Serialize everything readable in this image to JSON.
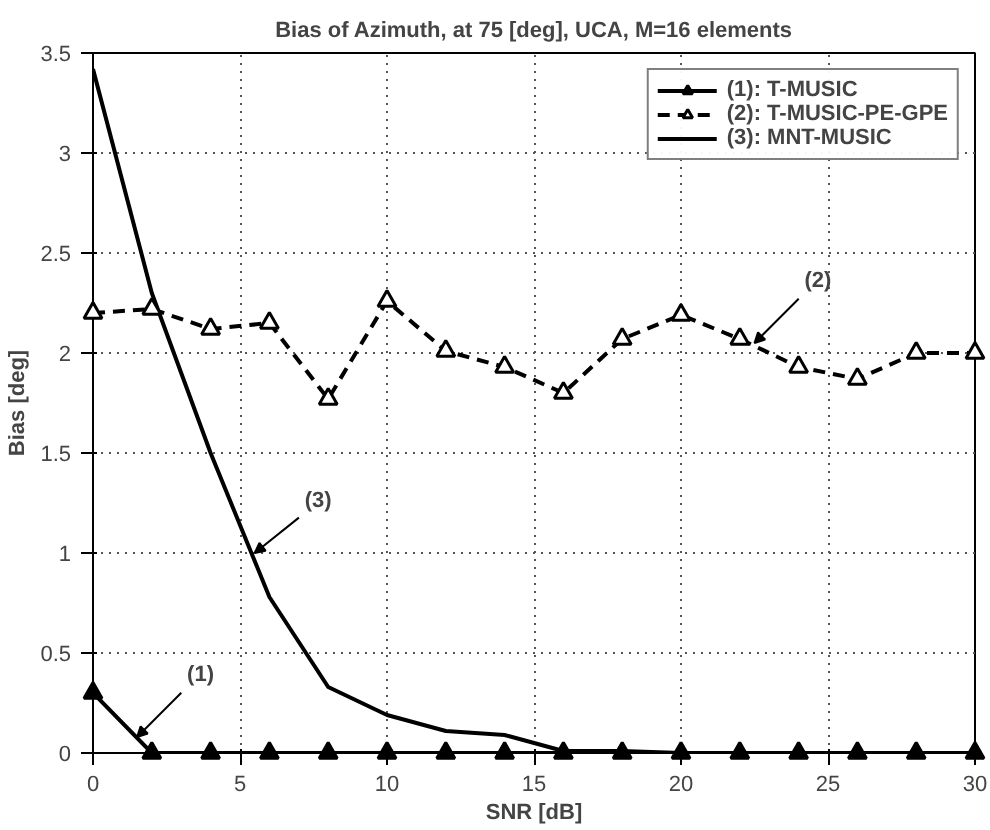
{
  "chart_data": {
    "type": "line",
    "title": "Bias of Azimuth, at 75 [deg], UCA, M=16 elements",
    "xlabel": "SNR [dB]",
    "ylabel": "Bias [deg]",
    "x": [
      0,
      2,
      4,
      6,
      8,
      10,
      12,
      14,
      16,
      18,
      20,
      22,
      24,
      26,
      28,
      30
    ],
    "series": [
      {
        "name": "(1): T-MUSIC",
        "color": "#000000",
        "marker": "triangle",
        "line_style": "solid",
        "values": [
          0.3,
          0,
          0,
          0,
          0,
          0,
          0,
          0,
          0,
          0,
          0,
          0,
          0,
          0,
          0,
          0
        ]
      },
      {
        "name": "(2): T-MUSIC-PE-GPE",
        "color": "#000000",
        "marker": "triangle",
        "line_style": "dashed",
        "values": [
          2.2,
          2.22,
          2.12,
          2.15,
          1.77,
          2.26,
          2.01,
          1.93,
          1.8,
          2.07,
          2.19,
          2.07,
          1.93,
          1.87,
          2.0,
          2.0
        ]
      },
      {
        "name": "(3): MNT-MUSIC",
        "color": "#000000",
        "marker": "none",
        "line_style": "solid",
        "values": [
          3.42,
          2.3,
          1.5,
          0.78,
          0.33,
          0.19,
          0.11,
          0.09,
          0.01,
          0.01,
          0,
          0,
          0,
          0,
          0,
          0
        ]
      }
    ],
    "xlim": [
      0,
      30
    ],
    "xticks": [
      0,
      5,
      10,
      15,
      20,
      25,
      30
    ],
    "ylim": [
      0,
      3.5
    ],
    "yticks": [
      0,
      0.5,
      1,
      1.5,
      2,
      2.5,
      3,
      3.5
    ],
    "grid": true,
    "legend": "top right",
    "annotations": [
      {
        "text": "(1)",
        "x": 1.5,
        "y": 0.08
      },
      {
        "text": "(2)",
        "x": 22.5,
        "y": 2.05
      },
      {
        "text": "(3)",
        "x": 5.5,
        "y": 1.0
      }
    ]
  }
}
